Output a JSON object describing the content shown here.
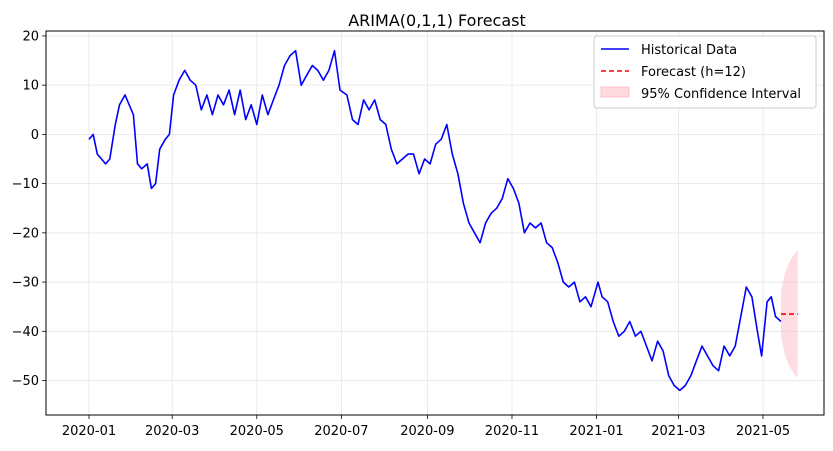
{
  "chart_data": {
    "type": "line",
    "title": "ARIMA(0,1,1) Forecast",
    "xlabel": "",
    "ylabel": "",
    "x_axis": {
      "type": "date",
      "range": [
        "2019-12-01",
        "2021-06-14"
      ],
      "ticks": [
        "2020-01",
        "2020-03",
        "2020-05",
        "2020-07",
        "2020-09",
        "2020-11",
        "2021-01",
        "2021-03",
        "2021-05"
      ]
    },
    "y_axis": {
      "range": [
        -57,
        21
      ],
      "ticks": [
        20,
        10,
        0,
        -10,
        -20,
        -30,
        -40,
        -50
      ]
    },
    "grid": true,
    "legend": {
      "placement": "top-right",
      "entries": [
        "Historical Data",
        "Forecast (h=12)",
        "95% Confidence Interval"
      ]
    },
    "series": [
      {
        "name": "Historical Data",
        "style": "solid",
        "color": "#0000ff",
        "points": [
          [
            "2020-01-01",
            -1
          ],
          [
            "2020-01-04",
            0
          ],
          [
            "2020-01-07",
            -4
          ],
          [
            "2020-01-10",
            -5
          ],
          [
            "2020-01-13",
            -6
          ],
          [
            "2020-01-16",
            -5
          ],
          [
            "2020-01-20",
            2
          ],
          [
            "2020-01-23",
            6
          ],
          [
            "2020-01-27",
            8
          ],
          [
            "2020-01-30",
            6
          ],
          [
            "2020-02-02",
            4
          ],
          [
            "2020-02-05",
            -6
          ],
          [
            "2020-02-08",
            -7
          ],
          [
            "2020-02-12",
            -6
          ],
          [
            "2020-02-15",
            -11
          ],
          [
            "2020-02-18",
            -10
          ],
          [
            "2020-02-21",
            -3
          ],
          [
            "2020-02-25",
            -1
          ],
          [
            "2020-02-28",
            0
          ],
          [
            "2020-03-02",
            8
          ],
          [
            "2020-03-06",
            11
          ],
          [
            "2020-03-10",
            13
          ],
          [
            "2020-03-14",
            11
          ],
          [
            "2020-03-18",
            10
          ],
          [
            "2020-03-22",
            5
          ],
          [
            "2020-03-26",
            8
          ],
          [
            "2020-03-30",
            4
          ],
          [
            "2020-04-03",
            8
          ],
          [
            "2020-04-07",
            6
          ],
          [
            "2020-04-11",
            9
          ],
          [
            "2020-04-15",
            4
          ],
          [
            "2020-04-19",
            9
          ],
          [
            "2020-04-23",
            3
          ],
          [
            "2020-04-27",
            6
          ],
          [
            "2020-05-01",
            2
          ],
          [
            "2020-05-05",
            8
          ],
          [
            "2020-05-09",
            4
          ],
          [
            "2020-05-13",
            7
          ],
          [
            "2020-05-17",
            10
          ],
          [
            "2020-05-21",
            14
          ],
          [
            "2020-05-25",
            16
          ],
          [
            "2020-05-29",
            17
          ],
          [
            "2020-06-02",
            10
          ],
          [
            "2020-06-06",
            12
          ],
          [
            "2020-06-10",
            14
          ],
          [
            "2020-06-14",
            13
          ],
          [
            "2020-06-18",
            11
          ],
          [
            "2020-06-22",
            13
          ],
          [
            "2020-06-26",
            17
          ],
          [
            "2020-06-30",
            9
          ],
          [
            "2020-07-05",
            8
          ],
          [
            "2020-07-09",
            3
          ],
          [
            "2020-07-13",
            2
          ],
          [
            "2020-07-17",
            7
          ],
          [
            "2020-07-21",
            5
          ],
          [
            "2020-07-25",
            7
          ],
          [
            "2020-07-29",
            3
          ],
          [
            "2020-08-02",
            2
          ],
          [
            "2020-08-06",
            -3
          ],
          [
            "2020-08-10",
            -6
          ],
          [
            "2020-08-14",
            -5
          ],
          [
            "2020-08-18",
            -4
          ],
          [
            "2020-08-22",
            -4
          ],
          [
            "2020-08-26",
            -8
          ],
          [
            "2020-08-30",
            -5
          ],
          [
            "2020-09-03",
            -6
          ],
          [
            "2020-09-07",
            -2
          ],
          [
            "2020-09-11",
            -1
          ],
          [
            "2020-09-15",
            2
          ],
          [
            "2020-09-19",
            -4
          ],
          [
            "2020-09-23",
            -8
          ],
          [
            "2020-09-27",
            -14
          ],
          [
            "2020-10-01",
            -18
          ],
          [
            "2020-10-05",
            -20
          ],
          [
            "2020-10-09",
            -22
          ],
          [
            "2020-10-13",
            -18
          ],
          [
            "2020-10-17",
            -16
          ],
          [
            "2020-10-21",
            -15
          ],
          [
            "2020-10-25",
            -13
          ],
          [
            "2020-10-29",
            -9
          ],
          [
            "2020-11-02",
            -11
          ],
          [
            "2020-11-06",
            -14
          ],
          [
            "2020-11-10",
            -20
          ],
          [
            "2020-11-14",
            -18
          ],
          [
            "2020-11-18",
            -19
          ],
          [
            "2020-11-22",
            -18
          ],
          [
            "2020-11-26",
            -22
          ],
          [
            "2020-11-30",
            -23
          ],
          [
            "2020-12-04",
            -26
          ],
          [
            "2020-12-08",
            -30
          ],
          [
            "2020-12-12",
            -31
          ],
          [
            "2020-12-16",
            -30
          ],
          [
            "2020-12-20",
            -34
          ],
          [
            "2020-12-24",
            -33
          ],
          [
            "2020-12-28",
            -35
          ],
          [
            "2021-01-02",
            -30
          ],
          [
            "2021-01-05",
            -33
          ],
          [
            "2021-01-09",
            -34
          ],
          [
            "2021-01-13",
            -38
          ],
          [
            "2021-01-17",
            -41
          ],
          [
            "2021-01-21",
            -40
          ],
          [
            "2021-01-25",
            -38
          ],
          [
            "2021-01-29",
            -41
          ],
          [
            "2021-02-02",
            -40
          ],
          [
            "2021-02-06",
            -43
          ],
          [
            "2021-02-10",
            -46
          ],
          [
            "2021-02-14",
            -42
          ],
          [
            "2021-02-18",
            -44
          ],
          [
            "2021-02-22",
            -49
          ],
          [
            "2021-02-26",
            -51
          ],
          [
            "2021-03-02",
            -52
          ],
          [
            "2021-03-06",
            -51
          ],
          [
            "2021-03-10",
            -49
          ],
          [
            "2021-03-14",
            -46
          ],
          [
            "2021-03-18",
            -43
          ],
          [
            "2021-03-22",
            -45
          ],
          [
            "2021-03-26",
            -47
          ],
          [
            "2021-03-30",
            -48
          ],
          [
            "2021-04-03",
            -43
          ],
          [
            "2021-04-07",
            -45
          ],
          [
            "2021-04-11",
            -43
          ],
          [
            "2021-04-15",
            -37
          ],
          [
            "2021-04-19",
            -31
          ],
          [
            "2021-04-23",
            -33
          ],
          [
            "2021-04-27",
            -40
          ],
          [
            "2021-04-30",
            -45
          ],
          [
            "2021-05-04",
            -34
          ],
          [
            "2021-05-07",
            -33
          ],
          [
            "2021-05-10",
            -37
          ],
          [
            "2021-05-14",
            -38
          ]
        ]
      },
      {
        "name": "Forecast (h=12)",
        "style": "dashed",
        "color": "#ff0000",
        "points": [
          [
            "2021-05-14",
            -36.5
          ],
          [
            "2021-05-26",
            -36.5
          ]
        ]
      }
    ],
    "confidence_interval": {
      "name": "95% Confidence Interval",
      "color": "#ffc0cb",
      "points": [
        [
          "2021-05-14",
          -32,
          -41
        ],
        [
          "2021-05-17",
          -28,
          -45
        ],
        [
          "2021-05-20",
          -26,
          -47
        ],
        [
          "2021-05-23",
          -24.5,
          -48.5
        ],
        [
          "2021-05-26",
          -23.5,
          -49.5
        ]
      ]
    }
  }
}
